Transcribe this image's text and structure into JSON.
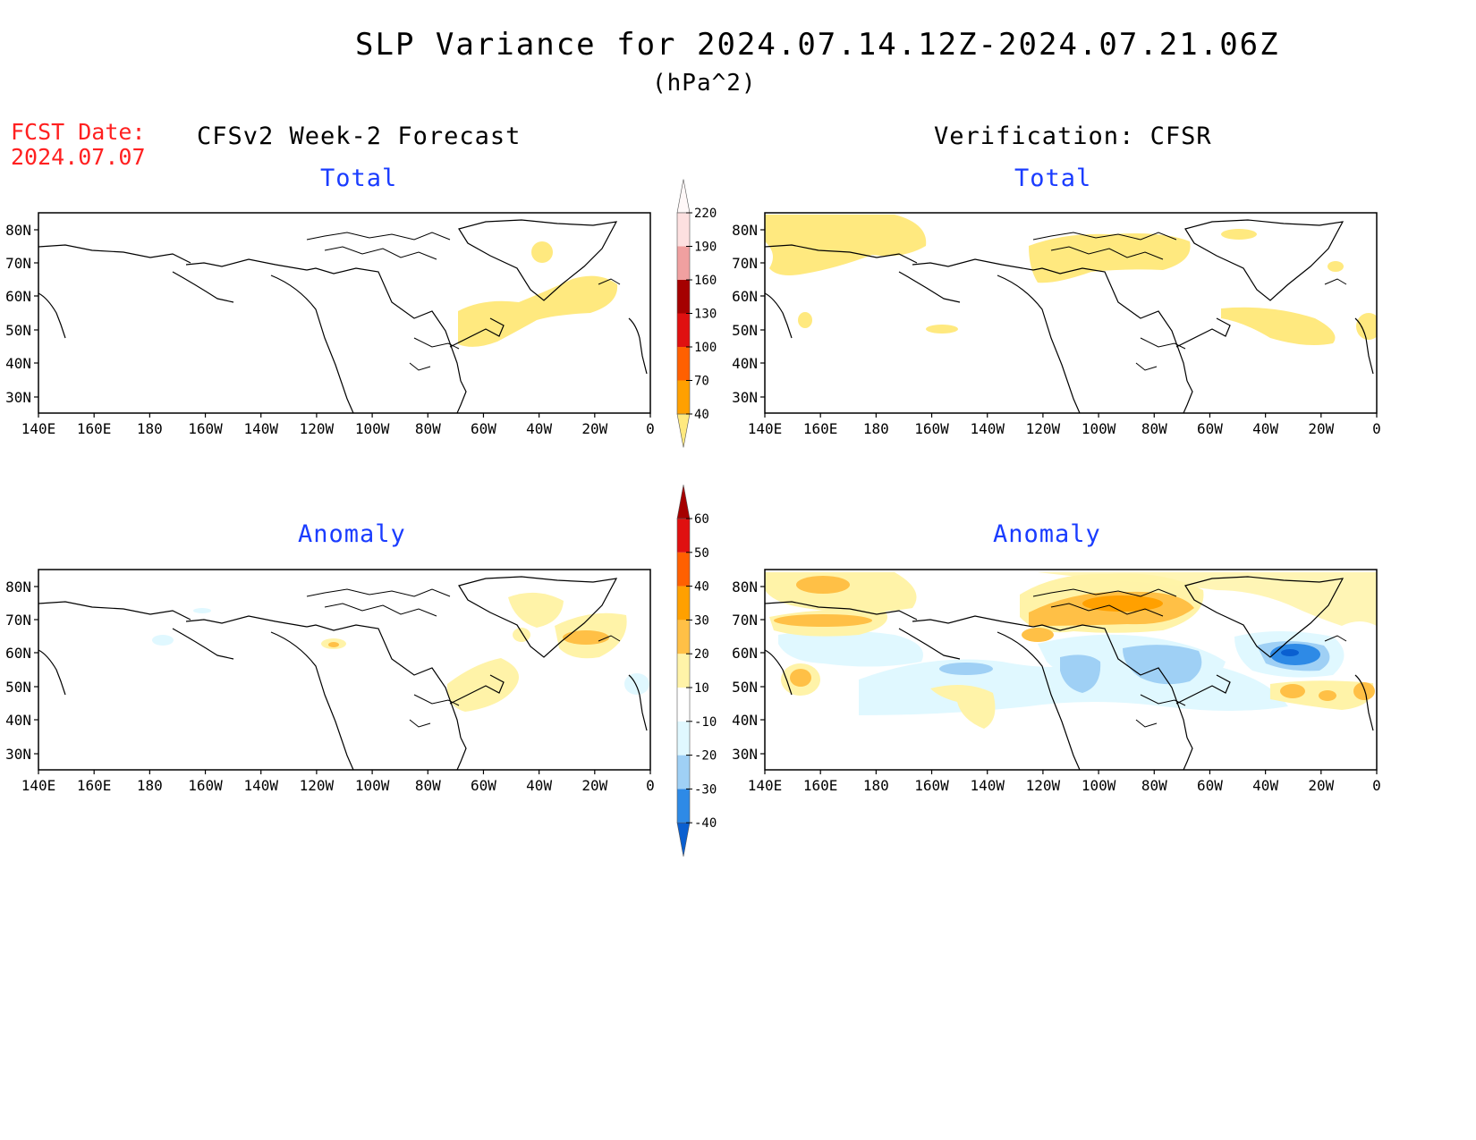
{
  "title": "SLP Variance for 2024.07.14.12Z-2024.07.21.06Z",
  "units": "(hPa^2)",
  "fcst_label": "FCST Date:",
  "fcst_date": "2024.07.07",
  "left_header": "CFSv2 Week-2 Forecast",
  "right_header": "Verification: CFSR",
  "panels": {
    "fc_total": {
      "title": "Total"
    },
    "vf_total": {
      "title": "Total"
    },
    "fc_anom": {
      "title": "Anomaly"
    },
    "vf_anom": {
      "title": "Anomaly"
    }
  },
  "lat_labels": [
    "80N",
    "70N",
    "60N",
    "50N",
    "40N",
    "30N"
  ],
  "lon_labels": [
    "140E",
    "160E",
    "180",
    "160W",
    "140W",
    "120W",
    "100W",
    "80W",
    "60W",
    "40W",
    "20W",
    "0"
  ],
  "total_colorbar": {
    "levels": [
      "40",
      "70",
      "100",
      "130",
      "160",
      "190",
      "220"
    ],
    "colors": [
      "#ffe97f",
      "#ffa000",
      "#ff6000",
      "#e01010",
      "#a50000",
      "#f0a0a0",
      "#fde0e0",
      "#fff8f8"
    ]
  },
  "anomaly_colorbar": {
    "levels": [
      "-40",
      "-30",
      "-20",
      "-10",
      "10",
      "20",
      "30",
      "40",
      "50",
      "60"
    ],
    "colors": [
      "#0a5fd0",
      "#2e8ae6",
      "#9fd0f5",
      "#e0f8ff",
      "#ffffff",
      "#fff3a8",
      "#ffc046",
      "#ffa000",
      "#ff6000",
      "#e01010",
      "#a50000"
    ]
  }
}
